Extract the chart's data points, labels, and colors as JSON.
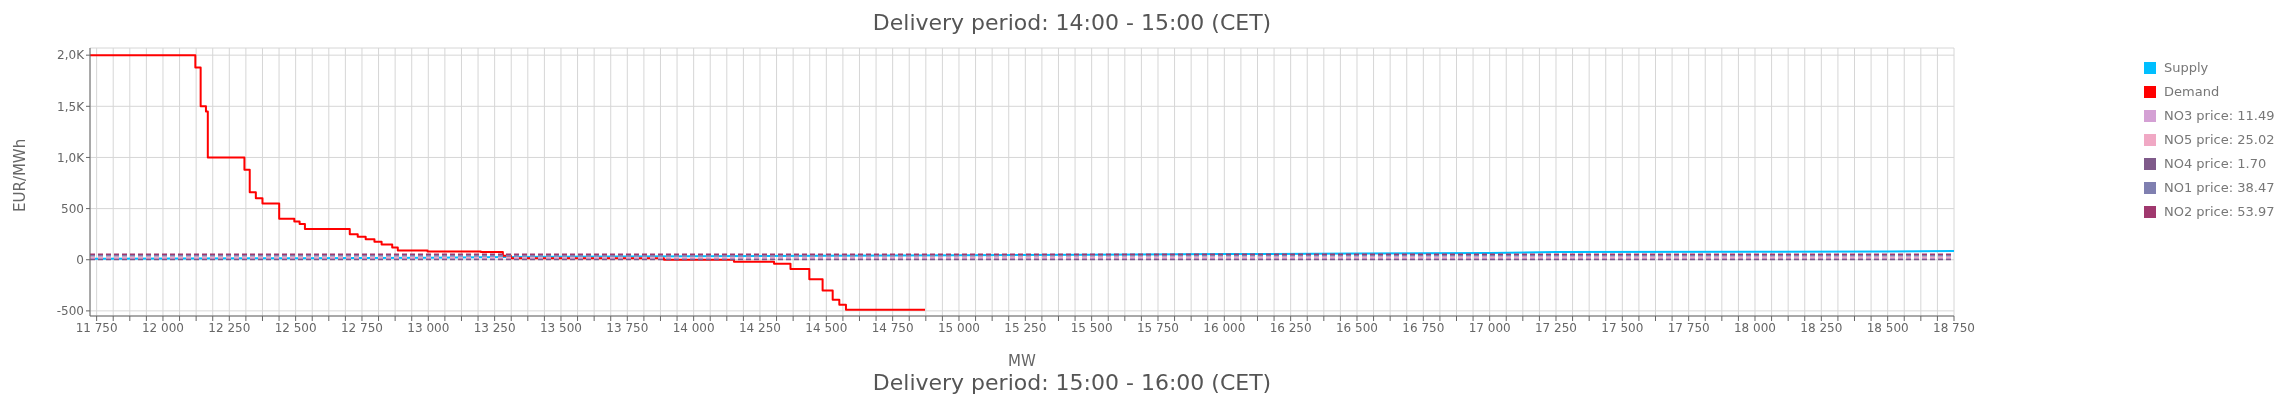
{
  "chart_data": {
    "type": "line",
    "title": "Delivery period: 14:00 - 15:00 (CET)",
    "xlabel": "MW",
    "ylabel": "EUR/MWh",
    "annotations": [
      "Delivery period: 15:00 - 16:00 (CET)"
    ],
    "xlim": [
      11725,
      18750
    ],
    "ylim": [
      -550,
      2070
    ],
    "yticks": [
      {
        "value": -500,
        "label": "-500"
      },
      {
        "value": 0,
        "label": "0"
      },
      {
        "value": 500,
        "label": "500"
      },
      {
        "value": 1000,
        "label": "1,0K"
      },
      {
        "value": 1500,
        "label": "1,5K"
      },
      {
        "value": 2000,
        "label": "2,0K"
      }
    ],
    "xticks": [
      {
        "value": 11750,
        "label": "11 750"
      },
      {
        "value": 11812.5,
        "label": null
      },
      {
        "value": 11875,
        "label": null
      },
      {
        "value": 11937.5,
        "label": null
      },
      {
        "value": 12000,
        "label": "12 000"
      },
      {
        "value": 12062.5,
        "label": null
      },
      {
        "value": 12125,
        "label": null
      },
      {
        "value": 12187.5,
        "label": null
      },
      {
        "value": 12250,
        "label": "12 250"
      },
      {
        "value": 12312.5,
        "label": null
      },
      {
        "value": 12375,
        "label": null
      },
      {
        "value": 12437.5,
        "label": null
      },
      {
        "value": 12500,
        "label": "12 500"
      },
      {
        "value": 12562.5,
        "label": null
      },
      {
        "value": 12625,
        "label": null
      },
      {
        "value": 12687.5,
        "label": null
      },
      {
        "value": 12750,
        "label": "12 750"
      },
      {
        "value": 12812.5,
        "label": null
      },
      {
        "value": 12875,
        "label": null
      },
      {
        "value": 12937.5,
        "label": null
      },
      {
        "value": 13000,
        "label": "13 000"
      },
      {
        "value": 13062.5,
        "label": null
      },
      {
        "value": 13125,
        "label": null
      },
      {
        "value": 13187.5,
        "label": null
      },
      {
        "value": 13250,
        "label": "13 250"
      },
      {
        "value": 13312.5,
        "label": null
      },
      {
        "value": 13375,
        "label": null
      },
      {
        "value": 13437.5,
        "label": null
      },
      {
        "value": 13500,
        "label": "13 500"
      },
      {
        "value": 13562.5,
        "label": null
      },
      {
        "value": 13625,
        "label": null
      },
      {
        "value": 13687.5,
        "label": null
      },
      {
        "value": 13750,
        "label": "13 750"
      },
      {
        "value": 13812.5,
        "label": null
      },
      {
        "value": 13875,
        "label": null
      },
      {
        "value": 13937.5,
        "label": null
      },
      {
        "value": 14000,
        "label": "14 000"
      },
      {
        "value": 14062.5,
        "label": null
      },
      {
        "value": 14125,
        "label": null
      },
      {
        "value": 14187.5,
        "label": null
      },
      {
        "value": 14250,
        "label": "14 250"
      },
      {
        "value": 14312.5,
        "label": null
      },
      {
        "value": 14375,
        "label": null
      },
      {
        "value": 14437.5,
        "label": null
      },
      {
        "value": 14500,
        "label": "14 500"
      },
      {
        "value": 14562.5,
        "label": null
      },
      {
        "value": 14625,
        "label": null
      },
      {
        "value": 14687.5,
        "label": null
      },
      {
        "value": 14750,
        "label": "14 750"
      },
      {
        "value": 14812.5,
        "label": null
      },
      {
        "value": 14875,
        "label": null
      },
      {
        "value": 14937.5,
        "label": null
      },
      {
        "value": 15000,
        "label": "15 000"
      },
      {
        "value": 15062.5,
        "label": null
      },
      {
        "value": 15125,
        "label": null
      },
      {
        "value": 15187.5,
        "label": null
      },
      {
        "value": 15250,
        "label": "15 250"
      },
      {
        "value": 15312.5,
        "label": null
      },
      {
        "value": 15375,
        "label": null
      },
      {
        "value": 15437.5,
        "label": null
      },
      {
        "value": 15500,
        "label": "15 500"
      },
      {
        "value": 15562.5,
        "label": null
      },
      {
        "value": 15625,
        "label": null
      },
      {
        "value": 15687.5,
        "label": null
      },
      {
        "value": 15750,
        "label": "15 750"
      },
      {
        "value": 15812.5,
        "label": null
      },
      {
        "value": 15875,
        "label": null
      },
      {
        "value": 15937.5,
        "label": null
      },
      {
        "value": 16000,
        "label": "16 000"
      },
      {
        "value": 16062.5,
        "label": null
      },
      {
        "value": 16125,
        "label": null
      },
      {
        "value": 16187.5,
        "label": null
      },
      {
        "value": 16250,
        "label": "16 250"
      },
      {
        "value": 16312.5,
        "label": null
      },
      {
        "value": 16375,
        "label": null
      },
      {
        "value": 16437.5,
        "label": null
      },
      {
        "value": 16500,
        "label": "16 500"
      },
      {
        "value": 16562.5,
        "label": null
      },
      {
        "value": 16625,
        "label": null
      },
      {
        "value": 16687.5,
        "label": null
      },
      {
        "value": 16750,
        "label": "16 750"
      },
      {
        "value": 16812.5,
        "label": null
      },
      {
        "value": 16875,
        "label": null
      },
      {
        "value": 16937.5,
        "label": null
      },
      {
        "value": 17000,
        "label": "17 000"
      },
      {
        "value": 17062.5,
        "label": null
      },
      {
        "value": 17125,
        "label": null
      },
      {
        "value": 17187.5,
        "label": null
      },
      {
        "value": 17250,
        "label": "17 250"
      },
      {
        "value": 17312.5,
        "label": null
      },
      {
        "value": 17375,
        "label": null
      },
      {
        "value": 17437.5,
        "label": null
      },
      {
        "value": 17500,
        "label": "17 500"
      },
      {
        "value": 17562.5,
        "label": null
      },
      {
        "value": 17625,
        "label": null
      },
      {
        "value": 17687.5,
        "label": null
      },
      {
        "value": 17750,
        "label": "17 750"
      },
      {
        "value": 17812.5,
        "label": null
      },
      {
        "value": 17875,
        "label": null
      },
      {
        "value": 17937.5,
        "label": null
      },
      {
        "value": 18000,
        "label": "18 000"
      },
      {
        "value": 18062.5,
        "label": null
      },
      {
        "value": 18125,
        "label": null
      },
      {
        "value": 18187.5,
        "label": null
      },
      {
        "value": 18250,
        "label": "18 250"
      },
      {
        "value": 18312.5,
        "label": null
      },
      {
        "value": 18375,
        "label": null
      },
      {
        "value": 18437.5,
        "label": null
      },
      {
        "value": 18500,
        "label": "18 500"
      },
      {
        "value": 18562.5,
        "label": null
      },
      {
        "value": 18625,
        "label": null
      },
      {
        "value": 18687.5,
        "label": null
      },
      {
        "value": 18750,
        "label": "18 750"
      }
    ],
    "grid": true,
    "legend": "top right",
    "marker": "none",
    "series": [
      {
        "name": "Supply",
        "color": "#00bfff",
        "x": [
          11725,
          12500,
          13000,
          13500,
          14000,
          14500,
          15000,
          15500,
          16000,
          16500,
          17000,
          17250,
          18000,
          18500,
          18750
        ],
        "values": [
          10,
          15,
          20,
          30,
          35,
          40,
          45,
          50,
          55,
          60,
          65,
          75,
          78,
          80,
          85
        ]
      },
      {
        "name": "Demand",
        "color": "#ff0000",
        "type": "step",
        "x": [
          11725,
          12122,
          12142,
          12162,
          12169,
          12307,
          12327,
          12350,
          12375,
          12438,
          12495,
          12515,
          12535,
          12704,
          12734,
          12764,
          12797,
          12824,
          12864,
          12885,
          12997,
          13198,
          13281,
          13311,
          13888,
          14152,
          14303,
          14365,
          14436,
          14486,
          14524,
          14549,
          14574,
          14872
        ],
        "values": [
          2000,
          1880,
          1500,
          1450,
          1000,
          880,
          660,
          600,
          550,
          400,
          375,
          350,
          300,
          250,
          225,
          200,
          175,
          150,
          120,
          90,
          80,
          75,
          40,
          15,
          0,
          -20,
          -40,
          -90,
          -190,
          -300,
          -390,
          -440,
          -490,
          -490
        ]
      },
      {
        "name": "NO3 price: 11.49",
        "color": "#d4a0d4",
        "line_style": "dashed",
        "x": [
          11725,
          18750
        ],
        "values": [
          11.49,
          11.49
        ]
      },
      {
        "name": "NO5 price: 25.02",
        "color": "#f0a8c4",
        "line_style": "dashed",
        "x": [
          11725,
          18750
        ],
        "values": [
          25.02,
          25.02
        ]
      },
      {
        "name": "NO4 price: 1.70",
        "color": "#7f5a8a",
        "line_style": "dashed",
        "x": [
          11725,
          18750
        ],
        "values": [
          1.7,
          1.7
        ]
      },
      {
        "name": "NO1 price: 38.47",
        "color": "#7f7fb0",
        "line_style": "dashed",
        "x": [
          11725,
          18750
        ],
        "values": [
          38.47,
          38.47
        ]
      },
      {
        "name": "NO2 price: 53.97",
        "color": "#a0386e",
        "line_style": "dashed",
        "x": [
          11725,
          18750
        ],
        "values": [
          53.97,
          53.97
        ]
      }
    ]
  }
}
